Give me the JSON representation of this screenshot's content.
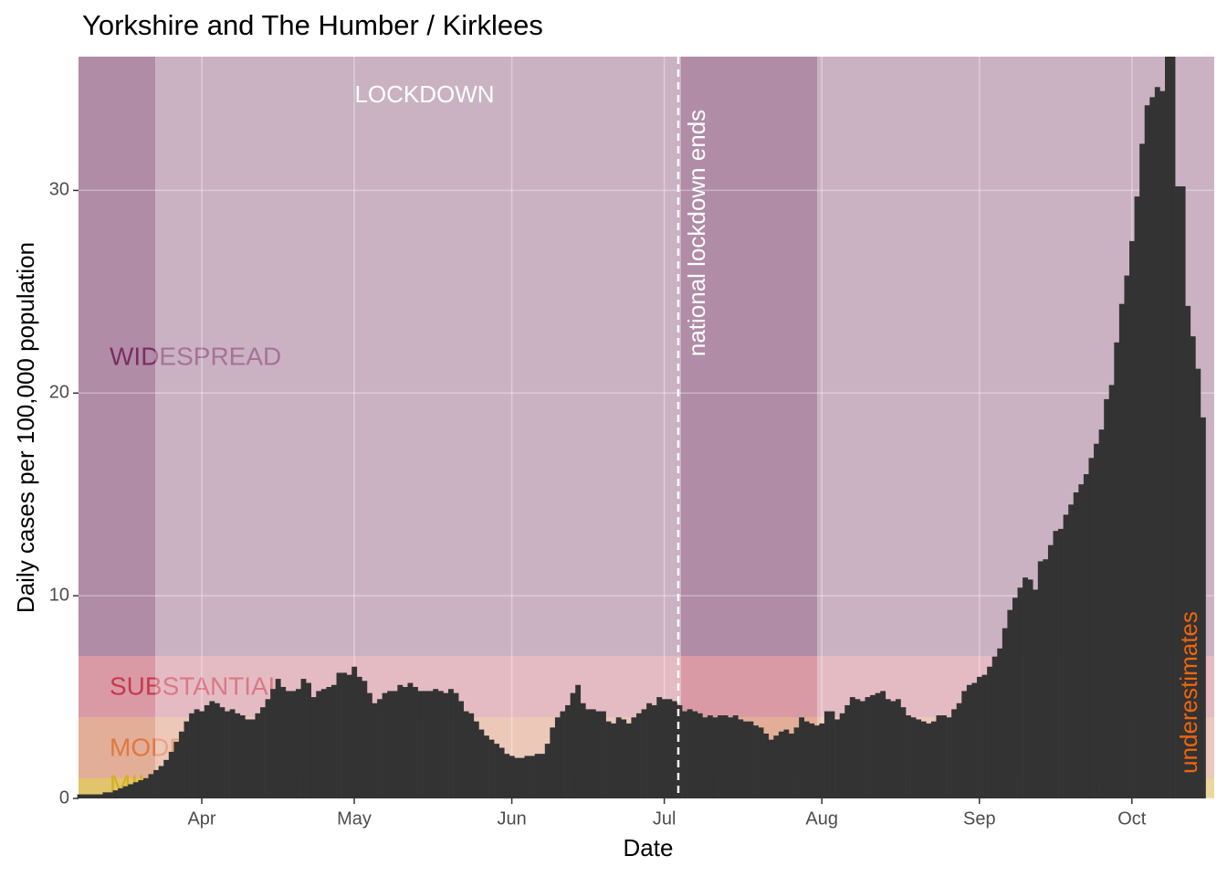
{
  "chart_data": {
    "type": "bar",
    "title": "Yorkshire and The Humber / Kirklees",
    "x_label": "Date",
    "y_label": "Daily cases per 100,000 population",
    "color": "#333333",
    "values": [
      0.2,
      0.2,
      0.2,
      0.2,
      0.2,
      0.3,
      0.3,
      0.4,
      0.5,
      0.6,
      0.7,
      0.8,
      0.9,
      1.0,
      1.2,
      1.4,
      1.6,
      1.9,
      2.3,
      2.8,
      3.3,
      3.8,
      4.2,
      4.4,
      4.3,
      4.6,
      4.8,
      4.7,
      4.5,
      4.3,
      4.4,
      4.2,
      4.1,
      3.9,
      3.9,
      4.2,
      4.5,
      4.9,
      5.4,
      5.9,
      5.5,
      5.3,
      5.3,
      5.4,
      5.9,
      5.7,
      5.0,
      5.3,
      5.4,
      5.5,
      5.6,
      6.2,
      6.2,
      6.1,
      6.5,
      6.0,
      5.8,
      5.2,
      4.7,
      4.9,
      5.2,
      5.3,
      5.3,
      5.6,
      5.5,
      5.7,
      5.5,
      5.3,
      5.3,
      5.3,
      5.4,
      5.3,
      5.2,
      5.4,
      5.2,
      4.8,
      4.3,
      4.2,
      3.8,
      3.4,
      3.1,
      2.9,
      2.7,
      2.5,
      2.2,
      2.1,
      2.0,
      2.0,
      2.1,
      2.1,
      2.2,
      2.2,
      2.7,
      3.5,
      4.0,
      4.3,
      4.6,
      5.2,
      5.6,
      4.7,
      4.4,
      4.4,
      4.3,
      4.3,
      3.8,
      3.7,
      4.0,
      3.9,
      3.7,
      4.0,
      4.2,
      4.4,
      4.7,
      4.6,
      5.0,
      4.9,
      4.9,
      4.8,
      4.6,
      4.3,
      4.4,
      4.3,
      4.2,
      4.0,
      4.1,
      4.0,
      4.1,
      4.1,
      4.0,
      4.1,
      3.9,
      3.8,
      3.8,
      3.6,
      3.5,
      3.2,
      2.9,
      3.1,
      3.3,
      3.4,
      3.2,
      3.5,
      4.0,
      3.8,
      3.7,
      3.6,
      3.7,
      4.3,
      4.3,
      3.9,
      4.2,
      4.6,
      5.0,
      4.9,
      4.8,
      5.0,
      5.1,
      5.2,
      5.3,
      4.9,
      4.8,
      4.9,
      4.5,
      4.1,
      4.0,
      3.9,
      3.8,
      3.7,
      3.8,
      4.1,
      4.1,
      4.0,
      4.4,
      4.7,
      5.3,
      5.6,
      5.7,
      6.0,
      6.1,
      6.5,
      7.0,
      7.4,
      8.4,
      9.3,
      9.9,
      10.4,
      10.9,
      10.8,
      10.3,
      11.7,
      11.8,
      12.5,
      13.2,
      13.3,
      14.0,
      14.5,
      15.1,
      15.5,
      16.0,
      16.8,
      17.5,
      18.2,
      19.7,
      20.4,
      22.5,
      24.4,
      25.8,
      27.5,
      29.7,
      32.3,
      34.2,
      34.6,
      35.1,
      34.9,
      36.6,
      36.6,
      30.2,
      30.2,
      24.3,
      22.8,
      21.2,
      18.8
    ],
    "xlim": [
      -0.25,
      223.2
    ],
    "xticks": [
      {
        "value": 24,
        "label": "Apr"
      },
      {
        "value": 54,
        "label": "May"
      },
      {
        "value": 85,
        "label": "Jun"
      },
      {
        "value": 115,
        "label": "Jul"
      },
      {
        "value": 146,
        "label": "Aug"
      },
      {
        "value": 177,
        "label": "Sep"
      },
      {
        "value": 207,
        "label": "Oct"
      }
    ],
    "ylim": [
      0,
      36.6
    ],
    "yticks": [
      0,
      10,
      20,
      30
    ],
    "grid": true,
    "bands": [
      "WIDESPREAD",
      "SUBSTANTIAL",
      "MODERATE",
      "MILD"
    ],
    "annotations": [
      "LOCKDOWN",
      "national lockdown ends",
      "underestimates"
    ]
  }
}
